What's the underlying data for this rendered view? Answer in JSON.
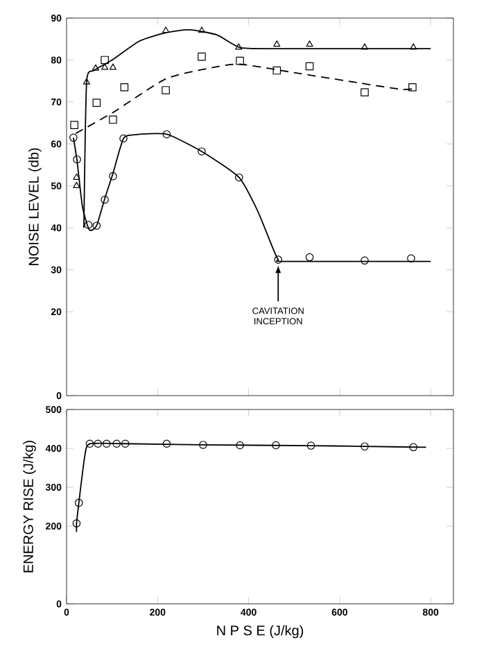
{
  "chart_data": [
    {
      "type": "scatter",
      "ylabel": "NOISE   LEVEL   (db)",
      "xlim": [
        0,
        850
      ],
      "ylim": [
        0,
        90
      ],
      "xticks": [
        200,
        400,
        600,
        800
      ],
      "yticks": [
        0,
        20,
        30,
        40,
        50,
        60,
        70,
        80,
        90
      ],
      "tick_labels": "y",
      "annotations": [
        {
          "text": "CAVITATION INCEPTION",
          "x": 465,
          "y": 32.4
        }
      ],
      "series": [
        {
          "color": "#000000",
          "marker": "triangle",
          "x": [
            22,
            22,
            44,
            64,
            84,
            102,
            218,
            297,
            378,
            462,
            534,
            655,
            762
          ],
          "values": [
            52,
            50,
            74.7,
            78,
            78.2,
            78.2,
            87,
            87,
            83,
            83.7,
            83.7,
            83,
            83
          ]
        },
        {
          "color": "#000000",
          "marker": "square",
          "x": [
            17,
            66,
            84,
            102,
            127,
            218,
            297,
            381,
            462,
            534,
            655,
            760
          ],
          "values": [
            64.5,
            69.8,
            80,
            65.8,
            73.5,
            72.8,
            80.8,
            79.8,
            77.5,
            78.5,
            72.3,
            73.5
          ]
        },
        {
          "color": "#000000",
          "marker": "circle",
          "x": [
            15,
            23,
            48,
            66,
            84,
            102,
            125,
            220,
            297,
            379,
            465,
            534,
            655,
            757
          ],
          "values": [
            61.5,
            56.3,
            40.7,
            40.5,
            46.7,
            52.3,
            61.3,
            62.3,
            58.2,
            52,
            32.4,
            33,
            32.2,
            32.7
          ]
        },
        {
          "type": "line",
          "color": "#000000",
          "line_style": "solid",
          "x": [
            38,
            44,
            60,
            100,
            160,
            218,
            270,
            330,
            380,
            450,
            800
          ],
          "values": [
            40,
            74.7,
            77.5,
            80,
            84.5,
            86.5,
            87.2,
            86,
            83,
            82.7,
            82.7
          ]
        },
        {
          "type": "line",
          "color": "#000000",
          "line_style": "dashed",
          "x": [
            20,
            102,
            218,
            320,
            381,
            500,
            645,
            736,
            767
          ],
          "values": [
            62.5,
            67.5,
            75.5,
            78.2,
            79,
            77,
            74.5,
            73,
            73.2
          ]
        },
        {
          "type": "line",
          "color": "#000000",
          "line_style": "solid",
          "x": [
            15,
            23,
            35,
            50,
            66,
            84,
            102,
            125,
            150,
            220,
            297,
            379,
            420,
            450,
            465,
            480,
            800
          ],
          "values": [
            61.5,
            56,
            45,
            39.5,
            40.5,
            47,
            53,
            61.3,
            62.2,
            62.3,
            58.2,
            52,
            44,
            36,
            32.4,
            32,
            32
          ]
        }
      ]
    },
    {
      "type": "scatter",
      "xlabel": "N P S E      (J/kg)",
      "ylabel": "ENERGY   RISE   (J/kg)",
      "xlim": [
        0,
        850
      ],
      "ylim": [
        0,
        500
      ],
      "xticks": [
        0,
        200,
        400,
        600,
        800
      ],
      "yticks": [
        0,
        200,
        300,
        400,
        500
      ],
      "series": [
        {
          "color": "#000000",
          "marker": "circle",
          "x": [
            22,
            27,
            51,
            69,
            88,
            110,
            129,
            220,
            300,
            381,
            460,
            537,
            655,
            762
          ],
          "values": [
            207,
            260,
            412,
            412,
            412,
            412,
            412,
            412,
            409,
            408,
            408,
            407,
            405,
            403
          ]
        },
        {
          "type": "line",
          "color": "#000000",
          "line_style": "solid",
          "x": [
            22,
            22,
            27,
            40,
            51,
            129,
            300,
            537,
            655,
            790
          ],
          "values": [
            185,
            207,
            260,
            380,
            412,
            412,
            409,
            407,
            405,
            403
          ]
        }
      ]
    }
  ]
}
